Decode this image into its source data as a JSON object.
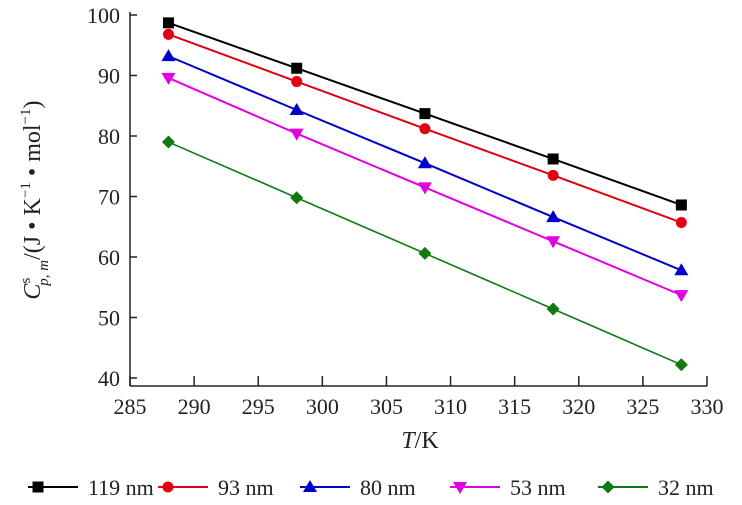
{
  "chart_data": {
    "type": "line",
    "title": "",
    "xlabel": "T/K",
    "xlabel_parts": {
      "var": "T",
      "unit": "/K"
    },
    "ylabel": "C^s_{p,m}/(J·K^-1·mol^-1)",
    "ylabel_parts": {
      "symbol": "C",
      "sup": "s",
      "sub": "p, m",
      "unit_open": "/(J • K",
      "exp1": "−1",
      "mid": " • mol",
      "exp2": "−1",
      "close": ")"
    },
    "xlim": [
      285,
      330
    ],
    "ylim": [
      40,
      100
    ],
    "xticks": [
      "285",
      "290",
      "295",
      "300",
      "305",
      "310",
      "315",
      "320",
      "325",
      "330"
    ],
    "yticks": [
      "40",
      "50",
      "60",
      "70",
      "80",
      "90",
      "100"
    ],
    "grid": false,
    "legend_position": "bottom",
    "x": [
      288,
      298,
      308,
      318,
      328
    ],
    "series": [
      {
        "name": "119 nm",
        "color": "#000000",
        "marker": "square",
        "values": [
          98.7,
          91.2,
          83.7,
          76.2,
          68.6
        ]
      },
      {
        "name": "93 nm",
        "color": "#e3000f",
        "marker": "circle",
        "values": [
          96.8,
          89.0,
          81.2,
          73.5,
          65.7
        ]
      },
      {
        "name": "80 nm",
        "color": "#0000cc",
        "marker": "triangle-up",
        "values": [
          93.2,
          84.3,
          75.5,
          66.6,
          57.8
        ]
      },
      {
        "name": "53 nm",
        "color": "#e100e1",
        "marker": "triangle-down",
        "values": [
          89.6,
          80.4,
          71.5,
          62.6,
          53.7
        ]
      },
      {
        "name": "32 nm",
        "color": "#0f7a0f",
        "marker": "diamond",
        "values": [
          79.0,
          69.8,
          60.6,
          51.4,
          42.2
        ]
      }
    ]
  }
}
